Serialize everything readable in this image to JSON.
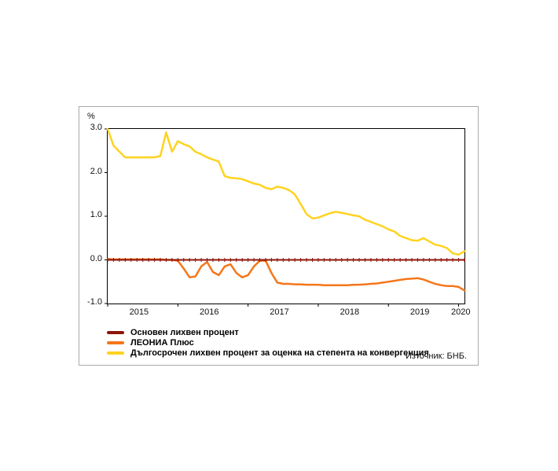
{
  "source_note": "Източник: БНБ.",
  "chart_data": {
    "type": "line",
    "title": "",
    "xlabel": "",
    "ylabel": "%",
    "ylim": [
      -1.0,
      3.0
    ],
    "yticks": [
      3.0,
      2.0,
      1.0,
      0.0,
      -1.0
    ],
    "xticklabels": [
      "2015",
      "2016",
      "2017",
      "2018",
      "2019",
      "2020"
    ],
    "x_unit": "months, Jan 2015 – Feb 2020",
    "grid": false,
    "legend_position": "bottom-left",
    "series": [
      {
        "name": "Основен лихвен процент",
        "color": "#8e1409",
        "width": 2,
        "marker": "vtick",
        "values": [
          0,
          0,
          0,
          0,
          0,
          0,
          0,
          0,
          0,
          0,
          0,
          0,
          0,
          0,
          0,
          0,
          0,
          0,
          0,
          0,
          0,
          0,
          0,
          0,
          0,
          0,
          0,
          0,
          0,
          0,
          0,
          0,
          0,
          0,
          0,
          0,
          0,
          0,
          0,
          0,
          0,
          0,
          0,
          0,
          0,
          0,
          0,
          0,
          0,
          0,
          0,
          0,
          0,
          0,
          0,
          0,
          0,
          0,
          0,
          0,
          0,
          0
        ]
      },
      {
        "name": "ЛЕОНИА Плюс",
        "color": "#f5761a",
        "width": 2.5,
        "marker": "none",
        "values": [
          0.02,
          0.01,
          0.01,
          0.01,
          0.01,
          0.01,
          0.01,
          0.01,
          0.01,
          0.01,
          0.0,
          0.0,
          -0.02,
          -0.2,
          -0.4,
          -0.38,
          -0.15,
          -0.05,
          -0.28,
          -0.35,
          -0.15,
          -0.1,
          -0.3,
          -0.4,
          -0.35,
          -0.15,
          -0.02,
          -0.02,
          -0.3,
          -0.52,
          -0.55,
          -0.55,
          -0.56,
          -0.56,
          -0.57,
          -0.57,
          -0.57,
          -0.58,
          -0.58,
          -0.58,
          -0.58,
          -0.58,
          -0.57,
          -0.57,
          -0.56,
          -0.55,
          -0.54,
          -0.52,
          -0.5,
          -0.48,
          -0.46,
          -0.44,
          -0.43,
          -0.42,
          -0.45,
          -0.5,
          -0.55,
          -0.58,
          -0.6,
          -0.6,
          -0.62,
          -0.7
        ]
      },
      {
        "name": "Дългосрочен лихвен процент за оценка на степента на конвергенция",
        "color": "#ffd320",
        "width": 2.5,
        "marker": "none",
        "values": [
          3.0,
          2.62,
          2.48,
          2.35,
          2.35,
          2.35,
          2.35,
          2.35,
          2.35,
          2.38,
          2.92,
          2.48,
          2.72,
          2.65,
          2.6,
          2.48,
          2.42,
          2.35,
          2.3,
          2.25,
          1.92,
          1.88,
          1.87,
          1.85,
          1.8,
          1.75,
          1.72,
          1.65,
          1.62,
          1.68,
          1.65,
          1.6,
          1.5,
          1.28,
          1.05,
          0.95,
          0.97,
          1.02,
          1.07,
          1.1,
          1.08,
          1.05,
          1.02,
          1.0,
          0.92,
          0.87,
          0.82,
          0.77,
          0.7,
          0.65,
          0.55,
          0.5,
          0.45,
          0.44,
          0.5,
          0.42,
          0.35,
          0.32,
          0.27,
          0.15,
          0.12,
          0.2
        ]
      }
    ]
  }
}
